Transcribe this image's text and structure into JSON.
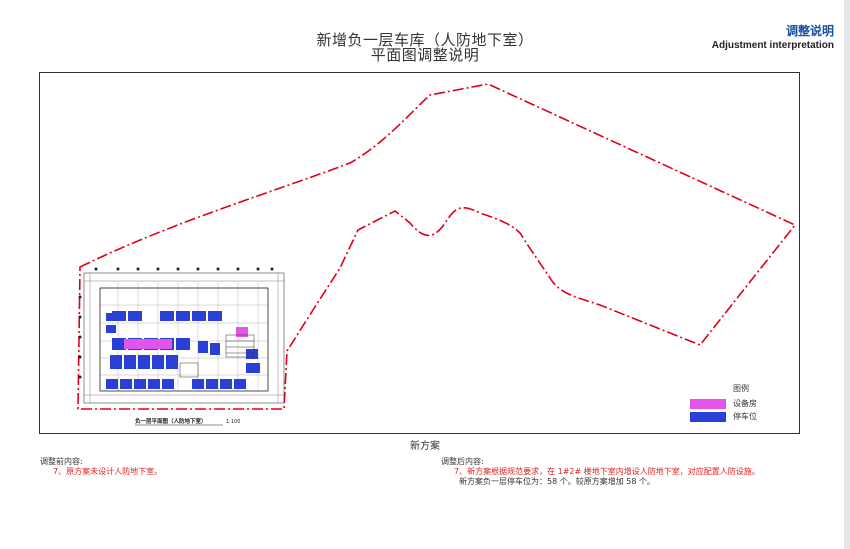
{
  "title": {
    "line1": "新增负一层车库（人防地下室）",
    "line2": "平面图调整说明"
  },
  "corner": {
    "cn": "调整说明",
    "en": "Adjustment interpretation"
  },
  "drawing": {
    "plan_label": "负一层平面图（人防地下室）",
    "plan_scale": "1:100"
  },
  "legend": {
    "title": "图例",
    "items": [
      {
        "label": "设备房",
        "color": "#e354e8"
      },
      {
        "label": "停车位",
        "color": "#2a3fd6"
      }
    ]
  },
  "caption": "新方案",
  "notes": {
    "before": {
      "heading": "调整前内容:",
      "line1": "7、原方案未设计人防地下室。"
    },
    "after": {
      "heading": "调整后内容:",
      "line1": "7、新方案根据规范要求，在 1#2# 楼地下室内增设人防地下室，对应配置人防设施。",
      "line2": "新方案负一层停车位为：58 个。较原方案增加 58 个。"
    }
  },
  "colors": {
    "boundary": "#e0001a",
    "accent": "#1a4fa3",
    "equipment": "#e354e8",
    "parking": "#2a3fd6"
  }
}
